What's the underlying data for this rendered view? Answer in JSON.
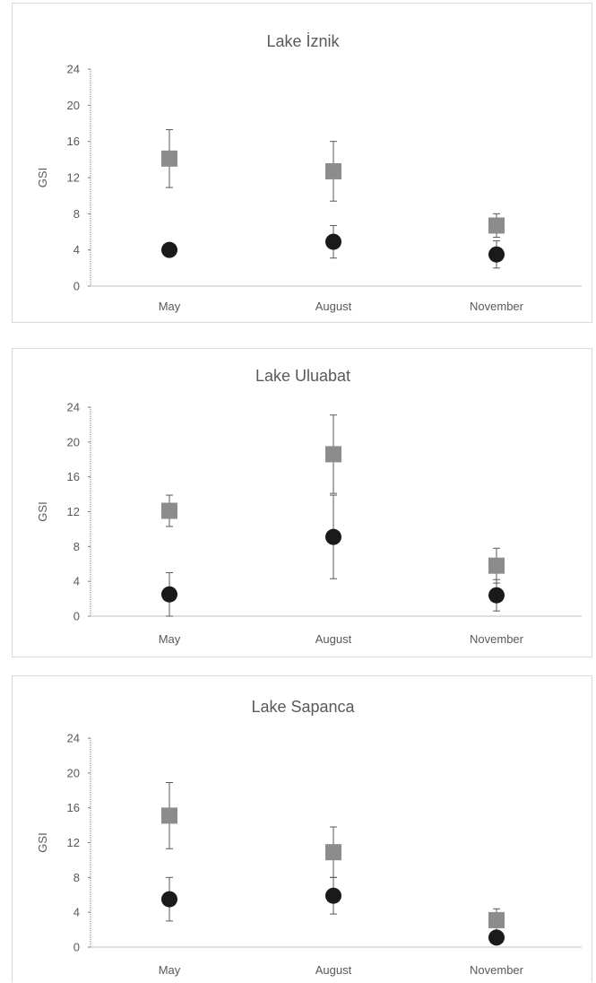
{
  "chart_data": [
    {
      "type": "scatter",
      "title": "Lake İznik",
      "xlabel": "",
      "ylabel": "GSI",
      "categories": [
        "May",
        "August",
        "November"
      ],
      "ylim": [
        0,
        24
      ],
      "yticks": [
        0,
        4,
        8,
        12,
        16,
        20,
        24
      ],
      "series": [
        {
          "marker": "square",
          "color": "#8c8c8c",
          "values": [
            14.1,
            12.7,
            6.7
          ],
          "error": [
            3.2,
            3.3,
            1.3
          ]
        },
        {
          "marker": "circle",
          "color": "#1a1a1a",
          "values": [
            4.0,
            4.9,
            3.5
          ],
          "error": [
            0,
            1.8,
            1.5
          ]
        }
      ]
    },
    {
      "type": "scatter",
      "title": "Lake Uluabat",
      "xlabel": "",
      "ylabel": "GSI",
      "categories": [
        "May",
        "August",
        "November"
      ],
      "ylim": [
        0,
        24
      ],
      "yticks": [
        0,
        4,
        8,
        12,
        16,
        20,
        24
      ],
      "series": [
        {
          "marker": "square",
          "color": "#8c8c8c",
          "values": [
            12.1,
            18.6,
            5.8
          ],
          "error": [
            1.8,
            4.5,
            2.0
          ]
        },
        {
          "marker": "circle",
          "color": "#1a1a1a",
          "values": [
            2.5,
            9.1,
            2.4
          ],
          "error": [
            2.5,
            4.8,
            1.8
          ]
        }
      ]
    },
    {
      "type": "scatter",
      "title": "Lake Sapanca",
      "xlabel": "",
      "ylabel": "GSI",
      "categories": [
        "May",
        "August",
        "November"
      ],
      "ylim": [
        0,
        24
      ],
      "yticks": [
        0,
        4,
        8,
        12,
        16,
        20,
        24
      ],
      "series": [
        {
          "marker": "square",
          "color": "#8c8c8c",
          "values": [
            15.1,
            10.9,
            3.1
          ],
          "error": [
            3.8,
            2.9,
            1.3
          ]
        },
        {
          "marker": "circle",
          "color": "#1a1a1a",
          "values": [
            5.5,
            5.9,
            1.1
          ],
          "error": [
            2.5,
            2.1,
            0
          ]
        }
      ]
    }
  ]
}
